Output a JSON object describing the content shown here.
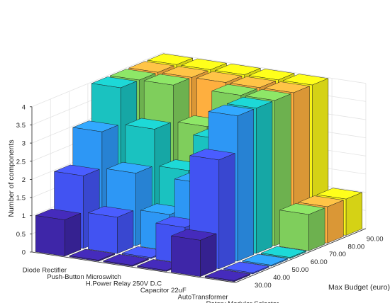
{
  "chart_data": {
    "type": "bar3d",
    "title": "",
    "xlabel": "",
    "ylabel": "Max Budget (euro)",
    "zlabel": "Number of components",
    "categories": [
      "Diode Rectifier",
      "Push-Button Microswitch",
      "H.Power Relay 250V D.C",
      "Capacitor 22uF",
      "AutoTransformer",
      "Rotary Modular Selector"
    ],
    "budgets": [
      "30.00",
      "40.00",
      "50.00",
      "60.00",
      "70.00",
      "80.00",
      "90.00"
    ],
    "z_ticks": [
      "0",
      "0.5",
      "1",
      "1.5",
      "2",
      "2.5",
      "3",
      "3.5",
      "4"
    ],
    "zlim": [
      0,
      4
    ],
    "grid": true,
    "colormap": "parula",
    "series": [
      {
        "values": [
          1,
          0,
          0,
          0,
          1,
          0
        ]
      },
      {
        "values": [
          2,
          1,
          0,
          1,
          3,
          0
        ]
      },
      {
        "values": [
          3,
          2,
          1,
          2,
          4,
          0
        ]
      },
      {
        "values": [
          4,
          3,
          2,
          3,
          4,
          0
        ]
      },
      {
        "values": [
          4,
          4,
          3,
          4,
          4,
          1
        ]
      },
      {
        "values": [
          4,
          4,
          4,
          4,
          4,
          1
        ]
      },
      {
        "values": [
          4,
          4,
          4,
          4,
          4,
          1
        ]
      }
    ],
    "series_colors": [
      "#3e26a8",
      "#4253f2",
      "#2d97f5",
      "#1ac2c0",
      "#7fce5c",
      "#feaf3f",
      "#f8f418"
    ]
  }
}
